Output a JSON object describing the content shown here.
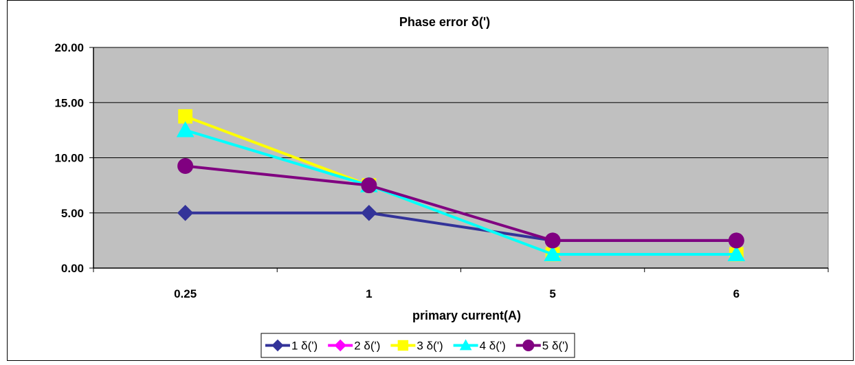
{
  "chart_data": {
    "type": "line",
    "title": "Phase error δ(')",
    "xlabel": "primary current(A)",
    "ylabel": "",
    "categories": [
      "0.25",
      "1",
      "5",
      "6"
    ],
    "ylim": [
      0,
      20
    ],
    "yticks": [
      "0.00",
      "5.00",
      "10.00",
      "15.00",
      "20.00"
    ],
    "ytick_values": [
      0,
      5,
      10,
      15,
      20
    ],
    "grid": true,
    "legend_position": "bottom",
    "plot_background": "#C0C0C0",
    "series": [
      {
        "name": "1 δ(')",
        "values": [
          5.0,
          5.0,
          2.5,
          2.5
        ],
        "color": "#333399",
        "marker": "diamond"
      },
      {
        "name": "2 δ(')",
        "values": [
          null,
          null,
          null,
          null
        ],
        "color": "#FF00FF",
        "marker": "diamond"
      },
      {
        "name": "3 δ(')",
        "values": [
          13.75,
          7.5,
          1.25,
          1.25
        ],
        "color": "#FFFF00",
        "marker": "square"
      },
      {
        "name": "4 δ(')",
        "values": [
          12.5,
          7.5,
          1.25,
          1.25
        ],
        "color": "#00FFFF",
        "marker": "triangle"
      },
      {
        "name": "5 δ(')",
        "values": [
          9.25,
          7.5,
          2.5,
          2.5
        ],
        "color": "#800080",
        "marker": "circle"
      }
    ]
  }
}
